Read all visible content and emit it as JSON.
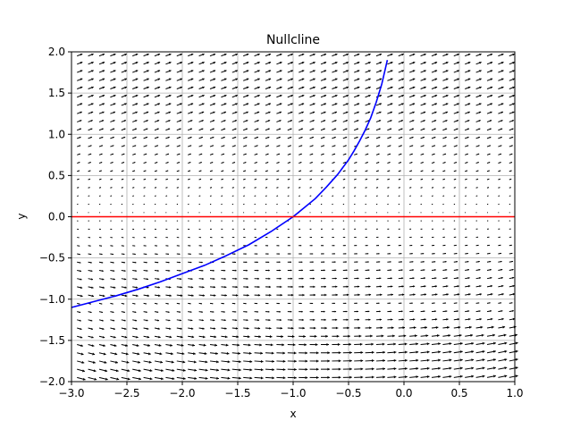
{
  "chart_data": {
    "type": "line",
    "title": "Nullcline",
    "xlabel": "x",
    "ylabel": "y",
    "xlim": [
      -3.0,
      1.0
    ],
    "ylim": [
      -2.0,
      2.0
    ],
    "grid": true,
    "xticks": [
      -3.0,
      -2.5,
      -2.0,
      -1.5,
      -1.0,
      -0.5,
      0.0,
      0.5,
      1.0
    ],
    "yticks": [
      -2.0,
      -1.5,
      -1.0,
      -0.5,
      0.0,
      0.5,
      1.0,
      1.5,
      2.0
    ],
    "xtick_labels": [
      "−3.0",
      "−2.5",
      "−2.0",
      "−1.5",
      "−1.0",
      "−0.5",
      "0.0",
      "0.5",
      "1.0"
    ],
    "ytick_labels": [
      "−2.0",
      "−1.5",
      "−1.0",
      "−0.5",
      "0.0",
      "0.5",
      "1.0",
      "1.5",
      "2.0"
    ],
    "series": [
      {
        "color": "#0000ff",
        "x": [
          -3.0,
          -2.8,
          -2.6,
          -2.4,
          -2.2,
          -2.0,
          -1.8,
          -1.6,
          -1.4,
          -1.2,
          -1.0,
          -0.9,
          -0.8,
          -0.7,
          -0.6,
          -0.5,
          -0.45,
          -0.4,
          -0.35,
          -0.3,
          -0.25,
          -0.2,
          -0.15
        ],
        "y": [
          -1.1,
          -1.03,
          -0.96,
          -0.88,
          -0.79,
          -0.69,
          -0.59,
          -0.47,
          -0.34,
          -0.18,
          0.0,
          0.11,
          0.22,
          0.36,
          0.51,
          0.69,
          0.8,
          0.92,
          1.05,
          1.2,
          1.39,
          1.61,
          1.9
        ]
      },
      {
        "color": "#ff0000",
        "x": [
          -3.0,
          1.0
        ],
        "y": [
          0.0,
          0.0
        ]
      }
    ],
    "vector_field": {
      "description_free": true,
      "x_samples": 40,
      "y_samples": 40,
      "color": "#000000"
    }
  }
}
